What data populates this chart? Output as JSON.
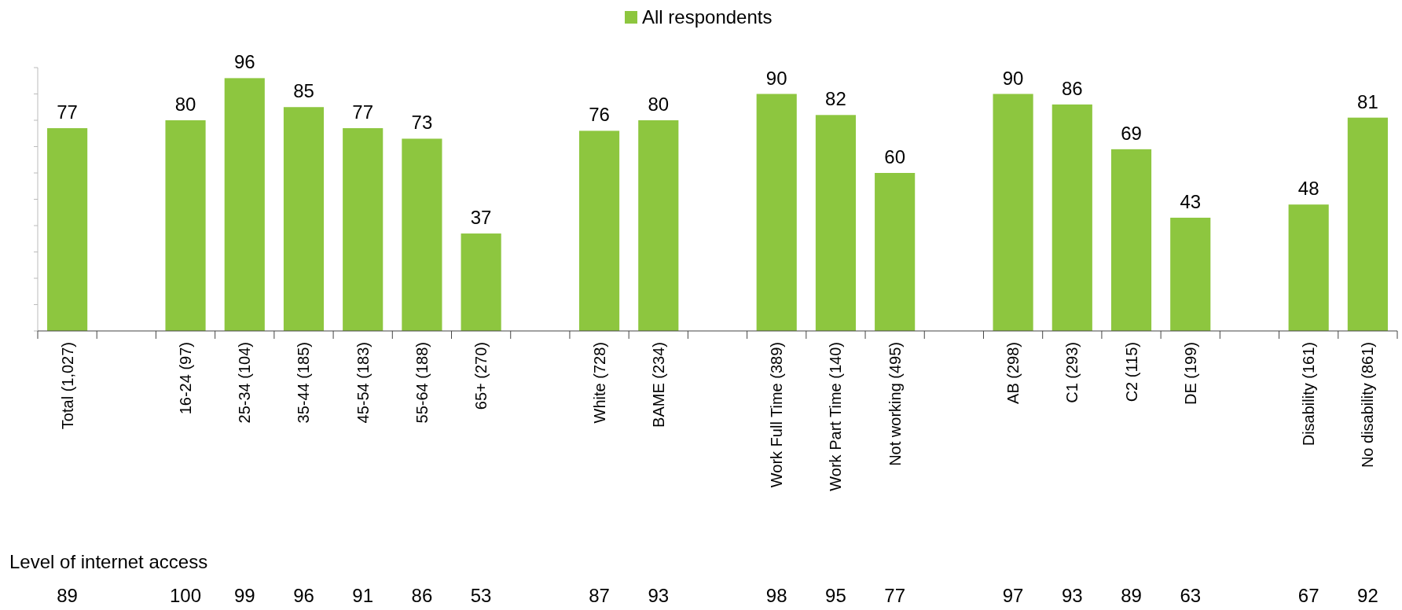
{
  "chart_data": {
    "type": "bar",
    "categories": [
      "Total (1,027)",
      null,
      "16-24 (97)",
      "25-34 (104)",
      "35-44 (185)",
      "45-54 (183)",
      "55-64 (188)",
      "65+ (270)",
      null,
      "White (728)",
      "BAME (234)",
      null,
      "Work Full Time (389)",
      "Work Part Time (140)",
      "Not working (495)",
      null,
      "AB (298)",
      "C1 (293)",
      "C2 (115)",
      "DE (199)",
      null,
      "Disability (161)",
      "No disability (861)"
    ],
    "series": [
      {
        "name": "All respondents",
        "color": "#8dc63f",
        "values": [
          77,
          null,
          80,
          96,
          85,
          77,
          73,
          37,
          null,
          76,
          80,
          null,
          90,
          82,
          60,
          null,
          90,
          86,
          69,
          43,
          null,
          48,
          81
        ]
      }
    ],
    "ylim": [
      0,
      100
    ],
    "yticks": [
      {
        "value": 0,
        "label": null
      },
      {
        "value": 10,
        "label": null
      },
      {
        "value": 20,
        "label": null
      },
      {
        "value": 30,
        "label": null
      },
      {
        "value": 40,
        "label": null
      },
      {
        "value": 50,
        "label": null
      },
      {
        "value": 60,
        "label": null
      },
      {
        "value": 70,
        "label": null
      },
      {
        "value": 80,
        "label": null
      },
      {
        "value": 90,
        "label": null
      },
      {
        "value": 100,
        "label": null
      }
    ],
    "data_labels": true,
    "legend": "top",
    "annotations": [
      "Level of internet access",
      "89",
      "100",
      "99",
      "96",
      "91",
      "86",
      "53",
      "87",
      "93",
      "98",
      "95",
      "77",
      "97",
      "93",
      "89",
      "63",
      "67",
      "92"
    ]
  }
}
